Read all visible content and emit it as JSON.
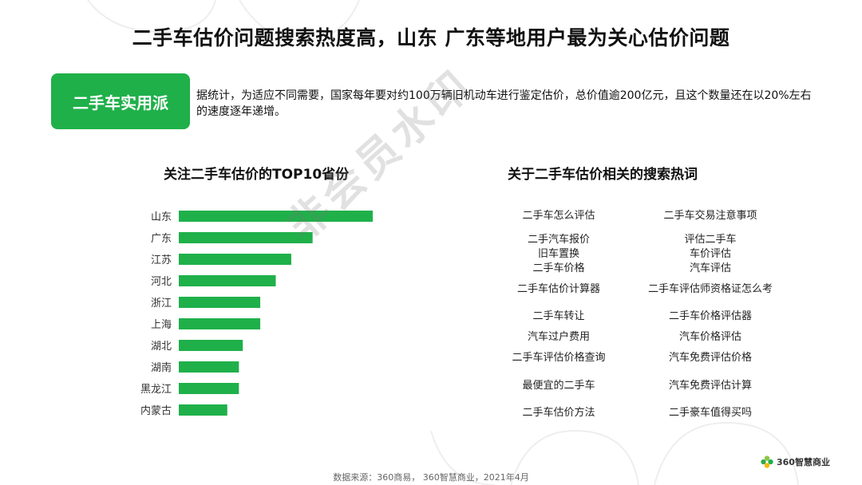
{
  "title": "二手车估价问题搜索热度高，山东 广东等地用户最为关心估价问题",
  "badge": "二手车实用派",
  "intro": "据统计，为适应不同需要，国家每年要对约100万辆旧机动车进行鉴定估价，总价值逾200亿元，且这个数量还在以20%左右的速度逐年递增。",
  "left_title": "关注二手车估价的TOP10省份",
  "right_title": "关于二手车估价相关的搜索热词",
  "watermark": "非会员水印",
  "source": "数据来源：360商易， 360智慧商业，2021年4月",
  "logo_text": "360智慧商业",
  "colors": {
    "accent": "#1fb04a",
    "bar": "#1fb04a"
  },
  "keywords_left": [
    "二手车怎么评估",
    "二手汽车报价",
    "旧车置换",
    "二手车价格",
    "二手车估价计算器",
    "二手车转让",
    "汽车过户费用",
    "二手车评估价格查询",
    "最便宜的二手车",
    "二手车估价方法"
  ],
  "keywords_right": [
    "二手车交易注意事项",
    "评估二手车",
    "车价评估",
    "汽车评估",
    "二手车评估师资格证怎么考",
    "二手车价格评估器",
    "汽车价格评估",
    "汽车免费评估价格",
    "汽车免费评估计算",
    "二手豪车值得买吗"
  ],
  "chart_data": {
    "type": "bar",
    "orientation": "horizontal",
    "title": "关注二手车估价的TOP10省份",
    "categories": [
      "山东",
      "广东",
      "江苏",
      "河北",
      "浙江",
      "上海",
      "湖北",
      "湖南",
      "黑龙江",
      "内蒙古"
    ],
    "values": [
      100,
      69,
      58,
      50,
      42,
      42,
      33,
      31,
      31,
      25
    ],
    "xlim": [
      0,
      100
    ],
    "grid": false,
    "legend": "none",
    "axis_labels_shown": false
  }
}
